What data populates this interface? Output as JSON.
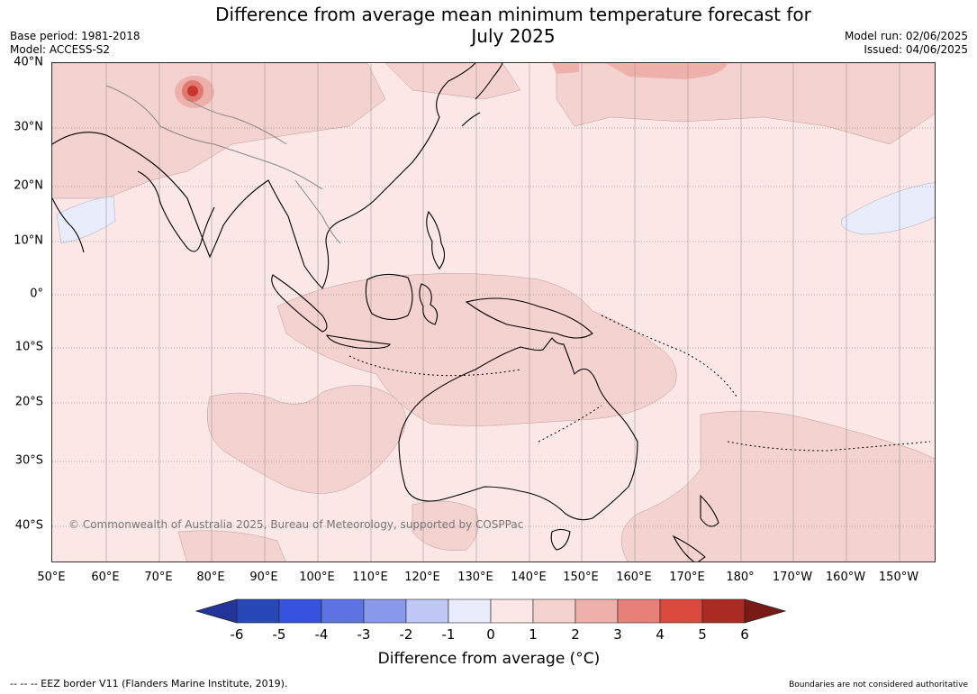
{
  "title_line1": "Difference from average mean minimum temperature forecast for",
  "title_line2": "July 2025",
  "meta_left": {
    "base_period": "Base period: 1981-2018",
    "model": "Model: ACCESS-S2"
  },
  "meta_right": {
    "model_run": "Model run: 02/06/2025",
    "issued": "Issued: 04/06/2025"
  },
  "copyright": "© Commonwealth of Australia 2025, Bureau of Meteorology, supported by COSPPac",
  "lat_labels": [
    "40°N",
    "30°N",
    "20°N",
    "10°N",
    "0°",
    "10°S",
    "20°S",
    "30°S",
    "40°S"
  ],
  "lon_labels": [
    "50°E",
    "60°E",
    "70°E",
    "80°E",
    "90°E",
    "100°E",
    "110°E",
    "120°E",
    "130°E",
    "140°E",
    "150°E",
    "160°E",
    "170°E",
    "180°",
    "170°W",
    "160°W",
    "150°W"
  ],
  "colorbar": {
    "ticks": [
      "-6",
      "-5",
      "-4",
      "-3",
      "-2",
      "-1",
      "0",
      "1",
      "2",
      "3",
      "4",
      "5",
      "6"
    ],
    "colors": [
      "#23349b",
      "#2848b8",
      "#3553de",
      "#5d73e4",
      "#8899ea",
      "#bfc8f4",
      "#e8ecfb",
      "#fbe8e6",
      "#f4d2cf",
      "#eeb0ab",
      "#e78078",
      "#d94a3c",
      "#ab2a22",
      "#7a1a16"
    ],
    "title": "Difference from average (°C)"
  },
  "map_colors": {
    "ocean_base": "#fbe8e6",
    "band_1_2": "#f4d2cf",
    "band_2_3": "#eeb0ab",
    "negative": "#e8ecfb",
    "hotspot": "#c8372d"
  },
  "footer_left": "--  --  -- EEZ border V11 (Flanders Marine Institute, 2019).",
  "footer_right": "Boundaries are not considered authoritative"
}
